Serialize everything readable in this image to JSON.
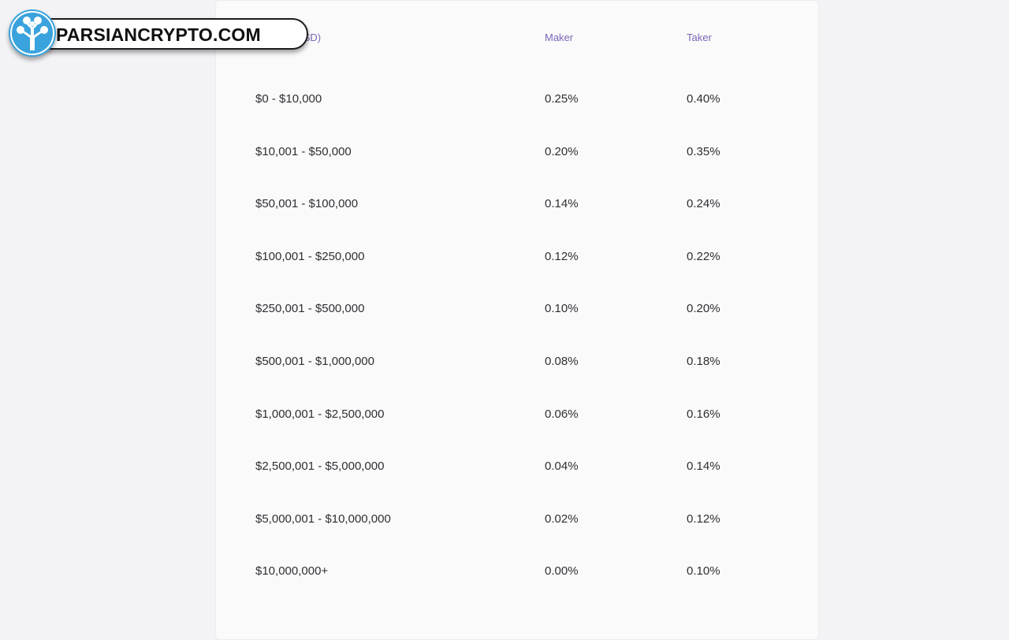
{
  "watermark": {
    "text": "PARSIANCRYPTO.COM",
    "icon": "tree-icon",
    "color": "#3aa3dd"
  },
  "fee_table": {
    "headers": {
      "volume": "Volume (USD)",
      "maker": "Maker",
      "taker": "Taker"
    },
    "rows": [
      {
        "volume": "$0 - $10,000",
        "maker": "0.25%",
        "taker": "0.40%"
      },
      {
        "volume": "$10,001 - $50,000",
        "maker": "0.20%",
        "taker": "0.35%"
      },
      {
        "volume": "$50,001 - $100,000",
        "maker": "0.14%",
        "taker": "0.24%"
      },
      {
        "volume": "$100,001 - $250,000",
        "maker": "0.12%",
        "taker": "0.22%"
      },
      {
        "volume": "$250,001 - $500,000",
        "maker": "0.10%",
        "taker": "0.20%"
      },
      {
        "volume": "$500,001 - $1,000,000",
        "maker": "0.08%",
        "taker": "0.18%"
      },
      {
        "volume": "$1,000,001 - $2,500,000",
        "maker": "0.06%",
        "taker": "0.16%"
      },
      {
        "volume": "$2,500,001 - $5,000,000",
        "maker": "0.04%",
        "taker": "0.14%"
      },
      {
        "volume": "$5,000,001 - $10,000,000",
        "maker": "0.02%",
        "taker": "0.12%"
      },
      {
        "volume": "$10,000,000+",
        "maker": "0.00%",
        "taker": "0.10%"
      }
    ],
    "header_color": "#7d66b8"
  }
}
